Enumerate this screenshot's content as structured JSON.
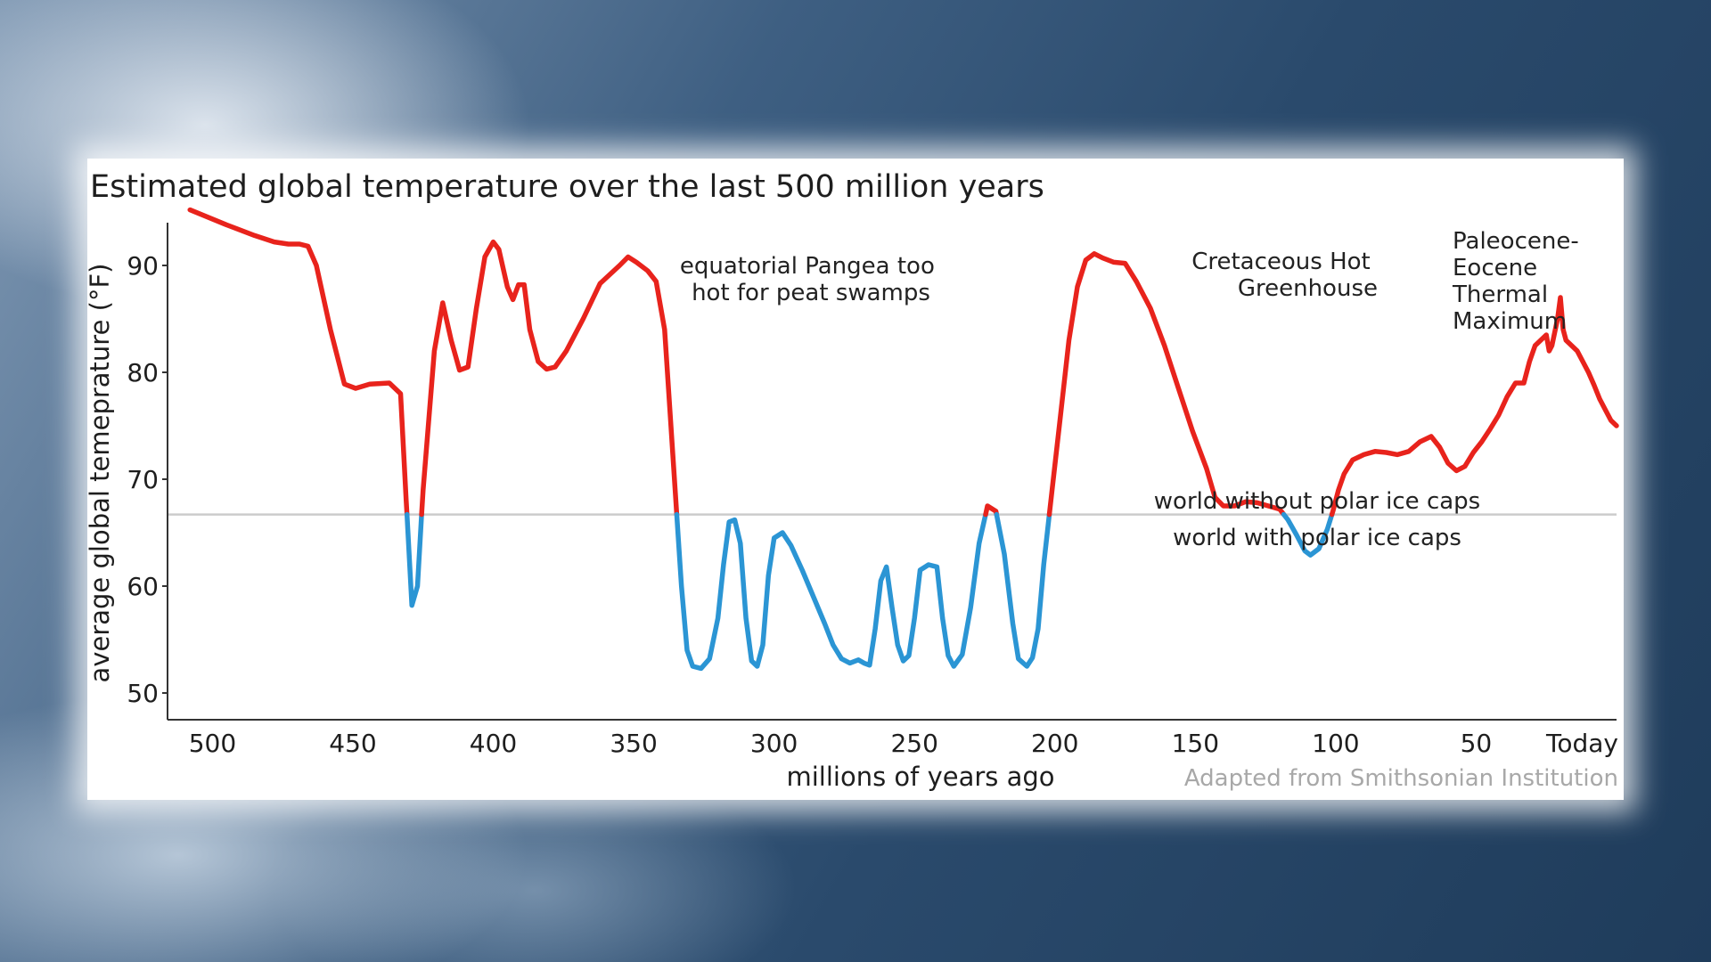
{
  "chart_data": {
    "type": "line",
    "title": "Estimated global temperature over the last 500 million years",
    "xlabel": "millions of years ago",
    "ylabel": "average global temeprature (°F)",
    "credit": "Adapted from Smithsonian Institution",
    "xlim": [
      516,
      0
    ],
    "ylim": [
      47.5,
      94
    ],
    "x_ticks": [
      {
        "value": 500,
        "label": "500"
      },
      {
        "value": 450,
        "label": "450"
      },
      {
        "value": 400,
        "label": "400"
      },
      {
        "value": 350,
        "label": "350"
      },
      {
        "value": 300,
        "label": "300"
      },
      {
        "value": 250,
        "label": "250"
      },
      {
        "value": 200,
        "label": "200"
      },
      {
        "value": 150,
        "label": "150"
      },
      {
        "value": 100,
        "label": "100"
      },
      {
        "value": 50,
        "label": "50"
      },
      {
        "value": 0,
        "label": "Today"
      }
    ],
    "y_ticks": [
      {
        "value": 90,
        "label": "90"
      },
      {
        "value": 80,
        "label": "80"
      },
      {
        "value": 70,
        "label": "70"
      },
      {
        "value": 60,
        "label": "60"
      },
      {
        "value": 50,
        "label": "50"
      }
    ],
    "threshold": {
      "value": 66.7,
      "label_above": "world without polar ice caps",
      "label_below": "world with polar ice caps"
    },
    "colors": {
      "above": "#e8231c",
      "below": "#2b95d4",
      "threshold": "#cccccc",
      "axis": "#333333"
    },
    "series": [
      {
        "name": "average global temperature",
        "points": [
          [
            508,
            95.2
          ],
          [
            495,
            93.8
          ],
          [
            485,
            92.8
          ],
          [
            478,
            92.2
          ],
          [
            473,
            92.0
          ],
          [
            469,
            92.0
          ],
          [
            466,
            91.8
          ],
          [
            463,
            90
          ],
          [
            458,
            84
          ],
          [
            453,
            78.9
          ],
          [
            449,
            78.5
          ],
          [
            444,
            78.9
          ],
          [
            437,
            79
          ],
          [
            433,
            78
          ],
          [
            431,
            68
          ],
          [
            429,
            58.2
          ],
          [
            427,
            60
          ],
          [
            425,
            69
          ],
          [
            421,
            82
          ],
          [
            418,
            86.5
          ],
          [
            415,
            83
          ],
          [
            412,
            80.2
          ],
          [
            409,
            80.5
          ],
          [
            406,
            86
          ],
          [
            403,
            90.8
          ],
          [
            400,
            92.2
          ],
          [
            398,
            91.5
          ],
          [
            395,
            88
          ],
          [
            393,
            86.8
          ],
          [
            391,
            88.2
          ],
          [
            389,
            88.2
          ],
          [
            387,
            84
          ],
          [
            384,
            81
          ],
          [
            381,
            80.3
          ],
          [
            378,
            80.5
          ],
          [
            374,
            82
          ],
          [
            368,
            85
          ],
          [
            362,
            88.3
          ],
          [
            355,
            90
          ],
          [
            352,
            90.8
          ],
          [
            349,
            90.3
          ],
          [
            345,
            89.5
          ],
          [
            342,
            88.5
          ],
          [
            339,
            84
          ],
          [
            337,
            76
          ],
          [
            335,
            68
          ],
          [
            333,
            60
          ],
          [
            331,
            54
          ],
          [
            329,
            52.5
          ],
          [
            326,
            52.3
          ],
          [
            323,
            53.2
          ],
          [
            320,
            57
          ],
          [
            318,
            62
          ],
          [
            316,
            66
          ],
          [
            314,
            66.2
          ],
          [
            312,
            64
          ],
          [
            310,
            57
          ],
          [
            308,
            53
          ],
          [
            306,
            52.5
          ],
          [
            304,
            54.5
          ],
          [
            302,
            61
          ],
          [
            300,
            64.5
          ],
          [
            297,
            65
          ],
          [
            294,
            63.8
          ],
          [
            290,
            61.5
          ],
          [
            286,
            59
          ],
          [
            282,
            56.5
          ],
          [
            279,
            54.5
          ],
          [
            276,
            53.2
          ],
          [
            273,
            52.8
          ],
          [
            270,
            53.1
          ],
          [
            268,
            52.8
          ],
          [
            266,
            52.6
          ],
          [
            264,
            56
          ],
          [
            262,
            60.5
          ],
          [
            260,
            61.8
          ],
          [
            258,
            58
          ],
          [
            256,
            54.5
          ],
          [
            254,
            53
          ],
          [
            252,
            53.5
          ],
          [
            250,
            57
          ],
          [
            248,
            61.5
          ],
          [
            245,
            62
          ],
          [
            242,
            61.8
          ],
          [
            240,
            57
          ],
          [
            238,
            53.5
          ],
          [
            236,
            52.5
          ],
          [
            233,
            53.6
          ],
          [
            230,
            58
          ],
          [
            227,
            64
          ],
          [
            224,
            67.5
          ],
          [
            221,
            67
          ],
          [
            218,
            63
          ],
          [
            215,
            56.5
          ],
          [
            213,
            53.2
          ],
          [
            210,
            52.5
          ],
          [
            208,
            53.3
          ],
          [
            206,
            56
          ],
          [
            204,
            62
          ],
          [
            201,
            69
          ],
          [
            198,
            76
          ],
          [
            195,
            83
          ],
          [
            192,
            88
          ],
          [
            189,
            90.5
          ],
          [
            186,
            91.1
          ],
          [
            183,
            90.7
          ],
          [
            179,
            90.3
          ],
          [
            175,
            90.2
          ],
          [
            171,
            88.5
          ],
          [
            166,
            86
          ],
          [
            161,
            82.5
          ],
          [
            156,
            78.5
          ],
          [
            151,
            74.5
          ],
          [
            146,
            71
          ],
          [
            143,
            68.3
          ],
          [
            140,
            67.5
          ],
          [
            136,
            67.5
          ],
          [
            132,
            67.9
          ],
          [
            128,
            67.8
          ],
          [
            124,
            67.5
          ],
          [
            120,
            67.2
          ],
          [
            117,
            66.2
          ],
          [
            114,
            64.8
          ],
          [
            111,
            63.3
          ],
          [
            109,
            62.9
          ],
          [
            106,
            63.5
          ],
          [
            103,
            65.3
          ],
          [
            101,
            67
          ],
          [
            99,
            69
          ],
          [
            97,
            70.5
          ],
          [
            94,
            71.8
          ],
          [
            90,
            72.3
          ],
          [
            86,
            72.6
          ],
          [
            82,
            72.5
          ],
          [
            78,
            72.3
          ],
          [
            74,
            72.6
          ],
          [
            70,
            73.5
          ],
          [
            66,
            74.0
          ],
          [
            63,
            73
          ],
          [
            60,
            71.5
          ],
          [
            57,
            70.8
          ],
          [
            54,
            71.2
          ],
          [
            51,
            72.5
          ],
          [
            48,
            73.5
          ],
          [
            45,
            74.7
          ],
          [
            42,
            76
          ],
          [
            39,
            77.7
          ],
          [
            36,
            79
          ],
          [
            33,
            79
          ],
          [
            31,
            81
          ],
          [
            29,
            82.5
          ],
          [
            27,
            83
          ],
          [
            25,
            83.5
          ],
          [
            24,
            82
          ],
          [
            23,
            82.5
          ],
          [
            21,
            85
          ],
          [
            20,
            87.0
          ],
          [
            19,
            84
          ],
          [
            18,
            83
          ],
          [
            16,
            82.5
          ],
          [
            14,
            82
          ],
          [
            12,
            81
          ],
          [
            10,
            80
          ],
          [
            8,
            78.8
          ],
          [
            6,
            77.5
          ],
          [
            4,
            76.5
          ],
          [
            2,
            75.5
          ],
          [
            0,
            75.0
          ]
        ]
      }
    ],
    "annotations": [
      {
        "text": [
          "equatorial Pangea too",
          "hot for peat swamps"
        ],
        "x": 297
      },
      {
        "text": [
          "Cretaceous Hot",
          "Greenhouse"
        ],
        "x": 98
      },
      {
        "text": [
          "Paleocene-",
          "Eocene",
          "Thermal",
          "Maximum"
        ],
        "x": 55
      }
    ]
  }
}
